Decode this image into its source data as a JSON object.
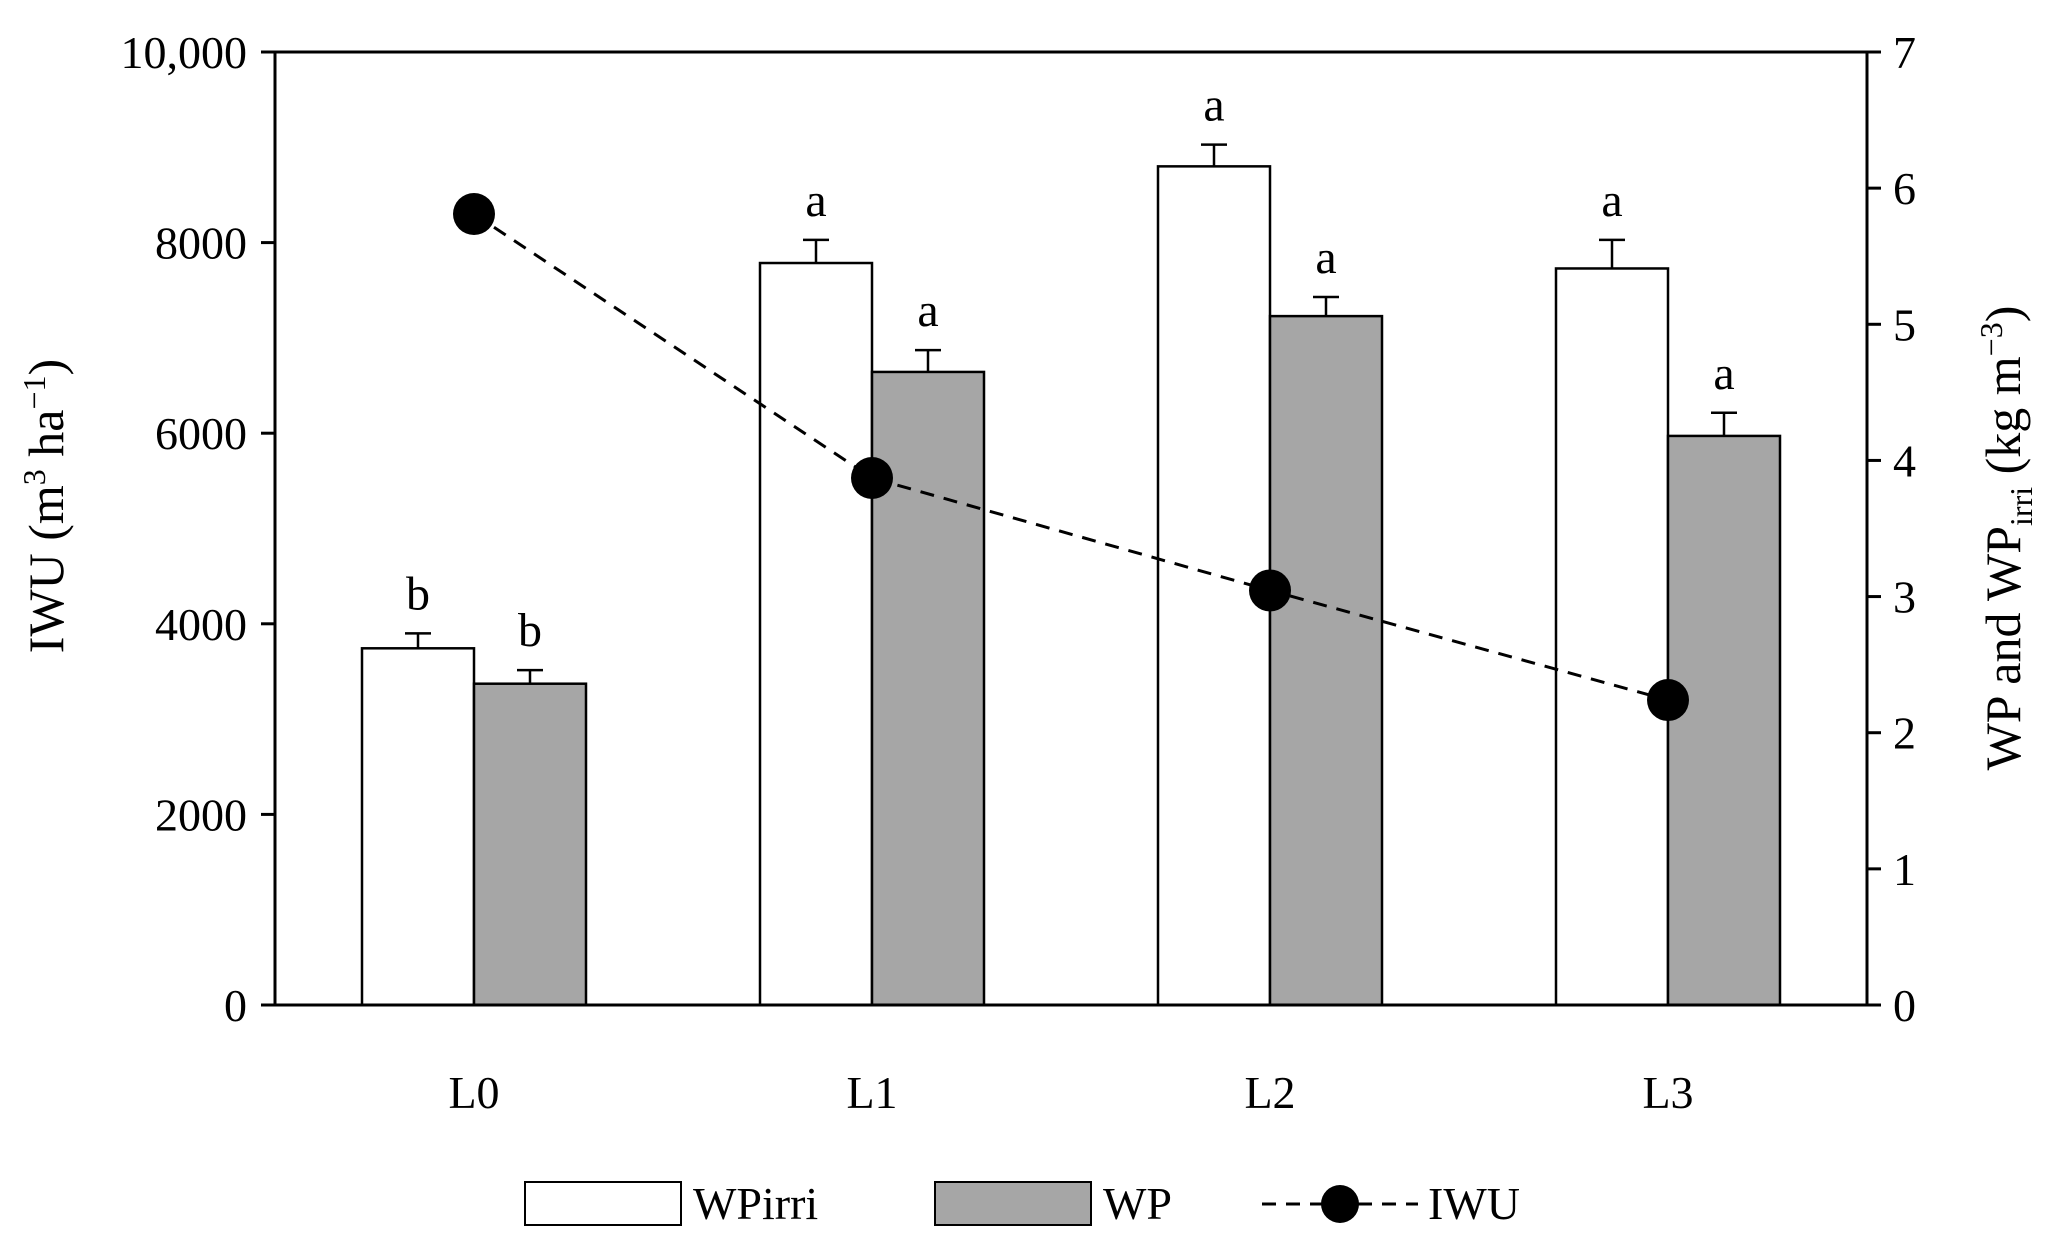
{
  "chart_data": {
    "type": "bar",
    "categories": [
      "L0",
      "L1",
      "L2",
      "L3"
    ],
    "left_axis": {
      "label_main": "IWU (m",
      "label_sup1": "3",
      "label_mid": " ha",
      "label_sup2": "−1",
      "label_end": ")",
      "ylim": [
        0,
        10000
      ],
      "ticks": [
        0,
        2000,
        4000,
        6000,
        8000,
        10000
      ],
      "tick_labels": [
        "0",
        "2000",
        "4000",
        "6000",
        "8000",
        "10,000"
      ]
    },
    "right_axis": {
      "label_main": "WP and WP",
      "label_sub": "irri",
      "label_mid": " (kg m",
      "label_sup": "−3",
      "label_end": ")",
      "ylim": [
        0,
        7
      ],
      "ticks": [
        0,
        1,
        2,
        3,
        4,
        5,
        6,
        7
      ],
      "tick_labels": [
        "0",
        "1",
        "2",
        "3",
        "4",
        "5",
        "6",
        "7"
      ]
    },
    "series": [
      {
        "name": "WPirri",
        "kind": "bar",
        "axis": "right",
        "color": "#ffffff",
        "values": [
          2.62,
          5.45,
          6.16,
          5.41
        ],
        "errors": [
          0.11,
          0.17,
          0.16,
          0.21
        ],
        "significance": [
          "b",
          "a",
          "a",
          "a"
        ]
      },
      {
        "name": "WP",
        "kind": "bar",
        "axis": "right",
        "color": "#a6a6a6",
        "values": [
          2.36,
          4.65,
          5.06,
          4.18
        ],
        "errors": [
          0.1,
          0.16,
          0.14,
          0.17
        ],
        "significance": [
          "b",
          "a",
          "a",
          "a"
        ]
      },
      {
        "name": "IWU",
        "kind": "line",
        "axis": "left",
        "style": "dashed",
        "color": "#000000",
        "values": [
          8300,
          5530,
          4350,
          3200
        ]
      }
    ],
    "legend": {
      "position": "bottom",
      "items": [
        "WPirri",
        "WP",
        "IWU"
      ]
    }
  }
}
